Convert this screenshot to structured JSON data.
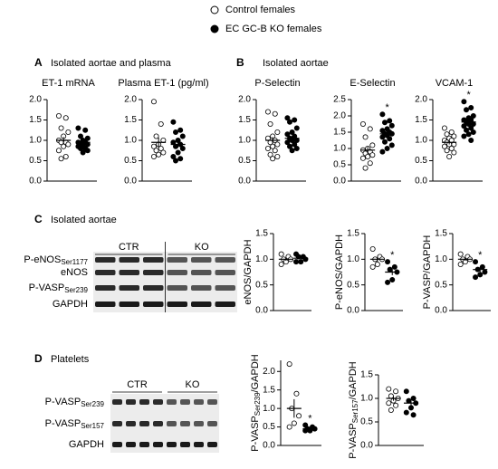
{
  "legend": [
    {
      "name": "Control females",
      "filled": false
    },
    {
      "name": "EC GC-B KO females",
      "filled": true
    }
  ],
  "panels": [
    {
      "letter": "A",
      "title": "Isolated aortae and plasma"
    },
    {
      "letter": "B",
      "title": "Isolated aortae"
    },
    {
      "letter": "C",
      "title": "Isolated aortae"
    },
    {
      "letter": "D",
      "title": "Platelets"
    }
  ],
  "blots": [
    {
      "groups": [
        "CTR",
        "KO"
      ],
      "rows": [
        {
          "main": "P-eNOS",
          "subscript": "Ser1177"
        },
        "eNOS",
        {
          "main": "P-VASP",
          "subscript": "Ser239"
        },
        "GAPDH"
      ]
    },
    {
      "groups": [
        "CTR",
        "KO"
      ],
      "rows": [
        {
          "main": "P-VASP",
          "subscript": "Ser239"
        },
        {
          "main": "P-VASP",
          "subscript": "Ser157"
        },
        "GAPDH"
      ]
    }
  ],
  "chart_data": [
    {
      "type": "dotplot",
      "title": "ET-1 mRNA",
      "ylim": [
        0,
        2
      ],
      "yticks": [
        {
          "value": 0,
          "label": "0.0"
        },
        0.5,
        {
          "value": 1,
          "label": "1.0"
        },
        1.5,
        {
          "value": 2,
          "label": "2.0"
        }
      ],
      "series": [
        {
          "filled": false,
          "values": [
            1.6,
            1.55,
            1.3,
            1.2,
            1.1,
            1.0,
            0.95,
            0.95,
            0.9,
            0.85,
            0.75,
            0.6,
            0.55
          ],
          "mean": 1.0,
          "sem": 0.08
        },
        {
          "filled": true,
          "values": [
            1.3,
            1.25,
            1.1,
            1.05,
            1.0,
            0.95,
            0.95,
            0.9,
            0.9,
            0.85,
            0.85,
            0.8,
            0.8,
            0.75,
            0.7
          ],
          "mean": 0.95,
          "sem": 0.05
        }
      ]
    },
    {
      "type": "dotplot",
      "title": "Plasma ET-1 (pg/ml)",
      "ylim": [
        0,
        2
      ],
      "yticks": [
        {
          "value": 0,
          "label": "0.0"
        },
        0.5,
        {
          "value": 1,
          "label": "1.0"
        },
        1.5,
        {
          "value": 2,
          "label": "2.0"
        }
      ],
      "series": [
        {
          "filled": false,
          "values": [
            1.95,
            1.4,
            1.1,
            1.0,
            0.9,
            0.85,
            0.8,
            0.75,
            0.7,
            0.65,
            0.6
          ],
          "mean": 0.95,
          "sem": 0.12
        },
        {
          "filled": true,
          "values": [
            1.45,
            1.25,
            1.2,
            1.1,
            1.0,
            0.95,
            0.9,
            0.85,
            0.8,
            0.7,
            0.6,
            0.55,
            0.5
          ],
          "mean": 0.9,
          "sem": 0.08
        }
      ]
    },
    {
      "type": "dotplot",
      "title": "P-Selectin",
      "ylim": [
        0,
        2
      ],
      "yticks": [
        {
          "value": 0,
          "label": "0.0"
        },
        0.5,
        {
          "value": 1,
          "label": "1.0"
        },
        1.5,
        {
          "value": 2,
          "label": "2.0"
        }
      ],
      "series": [
        {
          "filled": false,
          "values": [
            1.7,
            1.65,
            1.4,
            1.2,
            1.1,
            1.05,
            1.0,
            0.95,
            0.9,
            0.85,
            0.8,
            0.75,
            0.65,
            0.6,
            0.55
          ],
          "mean": 1.0,
          "sem": 0.08
        },
        {
          "filled": true,
          "values": [
            1.55,
            1.5,
            1.45,
            1.3,
            1.2,
            1.15,
            1.1,
            1.05,
            1.0,
            1.0,
            0.95,
            0.9,
            0.85,
            0.8,
            0.75
          ],
          "mean": 1.05,
          "sem": 0.06
        }
      ]
    },
    {
      "type": "dotplot",
      "title": "E-Selectin",
      "annotation": "*",
      "ylim": [
        0,
        2.5
      ],
      "yticks": [
        {
          "value": 0,
          "label": "0.0"
        },
        0.5,
        {
          "value": 1,
          "label": "1.0"
        },
        1.5,
        {
          "value": 2,
          "label": "2.0"
        },
        2.5
      ],
      "series": [
        {
          "filled": false,
          "values": [
            1.75,
            1.6,
            1.35,
            1.1,
            1.0,
            0.95,
            0.9,
            0.85,
            0.8,
            0.75,
            0.7,
            0.55,
            0.4
          ],
          "mean": 0.95,
          "sem": 0.1
        },
        {
          "filled": true,
          "values": [
            2.05,
            1.85,
            1.8,
            1.7,
            1.6,
            1.55,
            1.5,
            1.45,
            1.45,
            1.4,
            1.35,
            1.3,
            1.2,
            1.1,
            1.0,
            0.9
          ],
          "mean": 1.45,
          "sem": 0.08
        }
      ]
    },
    {
      "type": "dotplot",
      "title": "VCAM-1",
      "annotation": "*",
      "ylim": [
        0,
        2
      ],
      "yticks": [
        {
          "value": 0,
          "label": "0.0"
        },
        0.5,
        {
          "value": 1,
          "label": "1.0"
        },
        1.5,
        {
          "value": 2,
          "label": "2.0"
        }
      ],
      "series": [
        {
          "filled": false,
          "values": [
            1.3,
            1.2,
            1.15,
            1.1,
            1.05,
            1.0,
            1.0,
            0.95,
            0.9,
            0.9,
            0.85,
            0.8,
            0.75,
            0.7,
            0.6
          ],
          "mean": 0.95,
          "sem": 0.05
        },
        {
          "filled": true,
          "values": [
            1.95,
            1.8,
            1.75,
            1.6,
            1.55,
            1.5,
            1.5,
            1.45,
            1.4,
            1.4,
            1.35,
            1.3,
            1.25,
            1.2,
            1.15,
            1.1,
            1.0
          ],
          "mean": 1.45,
          "sem": 0.06
        }
      ]
    },
    {
      "type": "dotplot",
      "ylabel": "eNOS/GAPDH",
      "ylim": [
        0,
        1.5
      ],
      "yticks": [
        {
          "value": 0,
          "label": "0.0"
        },
        0.5,
        {
          "value": 1,
          "label": "1.0"
        },
        1.5
      ],
      "series": [
        {
          "filled": false,
          "values": [
            1.1,
            1.05,
            1.0,
            1.0,
            0.95,
            0.9
          ],
          "mean": 1.0,
          "sem": 0.03
        },
        {
          "filled": true,
          "values": [
            1.1,
            1.05,
            1.05,
            1.0,
            0.95,
            0.95
          ],
          "mean": 1.02,
          "sem": 0.03
        }
      ]
    },
    {
      "type": "dotplot",
      "ylabel": "P-eNOS/GAPDH",
      "annotation": "*",
      "ylim": [
        0,
        1.5
      ],
      "yticks": [
        {
          "value": 0,
          "label": "0.0"
        },
        0.5,
        {
          "value": 1,
          "label": "1.0"
        },
        1.5
      ],
      "series": [
        {
          "filled": false,
          "values": [
            1.2,
            1.05,
            1.0,
            1.0,
            0.9,
            0.85
          ],
          "mean": 1.0,
          "sem": 0.05
        },
        {
          "filled": true,
          "values": [
            0.95,
            0.85,
            0.8,
            0.75,
            0.6,
            0.55
          ],
          "mean": 0.75,
          "sem": 0.06
        }
      ]
    },
    {
      "type": "dotplot",
      "ylabel": "P-VASP/GAPDH",
      "annotation": "*",
      "ylim": [
        0,
        1.5
      ],
      "yticks": [
        {
          "value": 0,
          "label": "0.0"
        },
        0.5,
        {
          "value": 1,
          "label": "1.0"
        },
        1.5
      ],
      "series": [
        {
          "filled": false,
          "values": [
            1.1,
            1.05,
            1.0,
            1.0,
            0.95,
            0.9
          ],
          "mean": 1.0,
          "sem": 0.03
        },
        {
          "filled": true,
          "values": [
            0.95,
            0.85,
            0.8,
            0.75,
            0.7,
            0.65
          ],
          "mean": 0.8,
          "sem": 0.05
        }
      ]
    },
    {
      "type": "dotplot",
      "ylabel": {
        "main": "P-VASP",
        "subscript": "Ser239",
        "suffix": "/GAPDH"
      },
      "annotation": "*",
      "ylim": [
        0,
        2.3
      ],
      "yticks": [
        {
          "value": 0,
          "label": "0.0"
        },
        0.5,
        {
          "value": 1,
          "label": "1.0"
        },
        1.5,
        {
          "value": 2,
          "label": "2.0"
        }
      ],
      "series": [
        {
          "filled": false,
          "values": [
            2.2,
            1.4,
            1.0,
            0.8,
            0.6,
            0.5
          ],
          "mean": 1.0,
          "sem": 0.25
        },
        {
          "filled": true,
          "values": [
            0.55,
            0.5,
            0.45,
            0.45,
            0.4,
            0.4
          ],
          "mean": 0.45,
          "sem": 0.03
        }
      ]
    },
    {
      "type": "dotplot",
      "ylabel": {
        "main": "P-VASP",
        "subscript": "Ser157",
        "suffix": "/GAPDH"
      },
      "ylim": [
        0,
        1.5
      ],
      "yticks": [
        {
          "value": 0,
          "label": "0.0"
        },
        0.5,
        {
          "value": 1,
          "label": "1.0"
        },
        1.5
      ],
      "series": [
        {
          "filled": false,
          "values": [
            1.2,
            1.15,
            1.05,
            1.0,
            0.95,
            0.9,
            0.85,
            0.75
          ],
          "mean": 1.0,
          "sem": 0.05
        },
        {
          "filled": true,
          "values": [
            1.15,
            1.0,
            0.95,
            0.9,
            0.8,
            0.7,
            0.65
          ],
          "mean": 0.9,
          "sem": 0.07
        }
      ]
    }
  ]
}
